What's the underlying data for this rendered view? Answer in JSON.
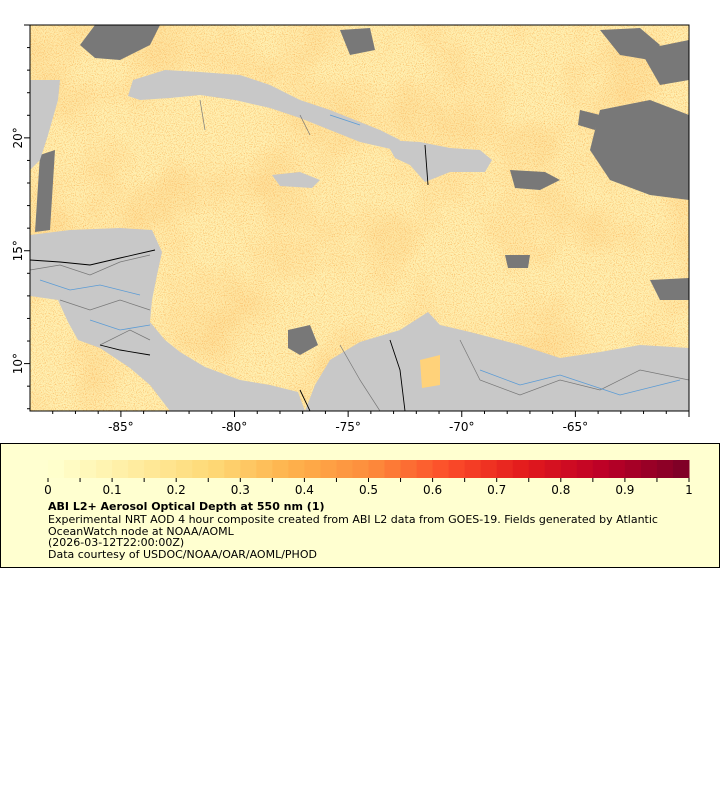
{
  "map": {
    "lon_range": [
      -89,
      -60
    ],
    "lat_range": [
      7.9,
      25
    ],
    "x_ticks": [
      {
        "value": -85,
        "label": "-85°"
      },
      {
        "value": -80,
        "label": "-80°"
      },
      {
        "value": -75,
        "label": "-75°"
      },
      {
        "value": -70,
        "label": "-70°"
      },
      {
        "value": -65,
        "label": "-65°"
      }
    ],
    "y_ticks": [
      {
        "value": 20,
        "label": "20°"
      },
      {
        "value": 15,
        "label": "15°"
      },
      {
        "value": 10,
        "label": "10°"
      }
    ],
    "colors": {
      "land": "#c8c8c8",
      "cloud": "#787878",
      "low_aod": "#ffefb0",
      "border": "#000000",
      "river": "#5b9bd5"
    }
  },
  "legend": {
    "colorbar": {
      "min": 0,
      "max": 1,
      "steps": 40,
      "ticks": [
        "0",
        "0.1",
        "0.2",
        "0.3",
        "0.4",
        "0.5",
        "0.6",
        "0.7",
        "0.8",
        "0.9",
        "1"
      ],
      "colormap": [
        "#ffffcc",
        "#ffeda0",
        "#fed976",
        "#feb24c",
        "#fd8d3c",
        "#fc4e2a",
        "#e31a1c",
        "#bd0026",
        "#800026"
      ]
    },
    "title": "ABI L2+ Aerosol Optical Depth at 550 nm (1)",
    "description": "Experimental NRT AOD 4 hour composite created from ABI L2 data from GOES-19. Fields generated by Atlantic OceanWatch node at NOAA/AOML",
    "timestamp": "(2026-03-12T22:00:00Z)",
    "credit": "Data courtesy of USDOC/NOAA/OAR/AOML/PHOD"
  }
}
